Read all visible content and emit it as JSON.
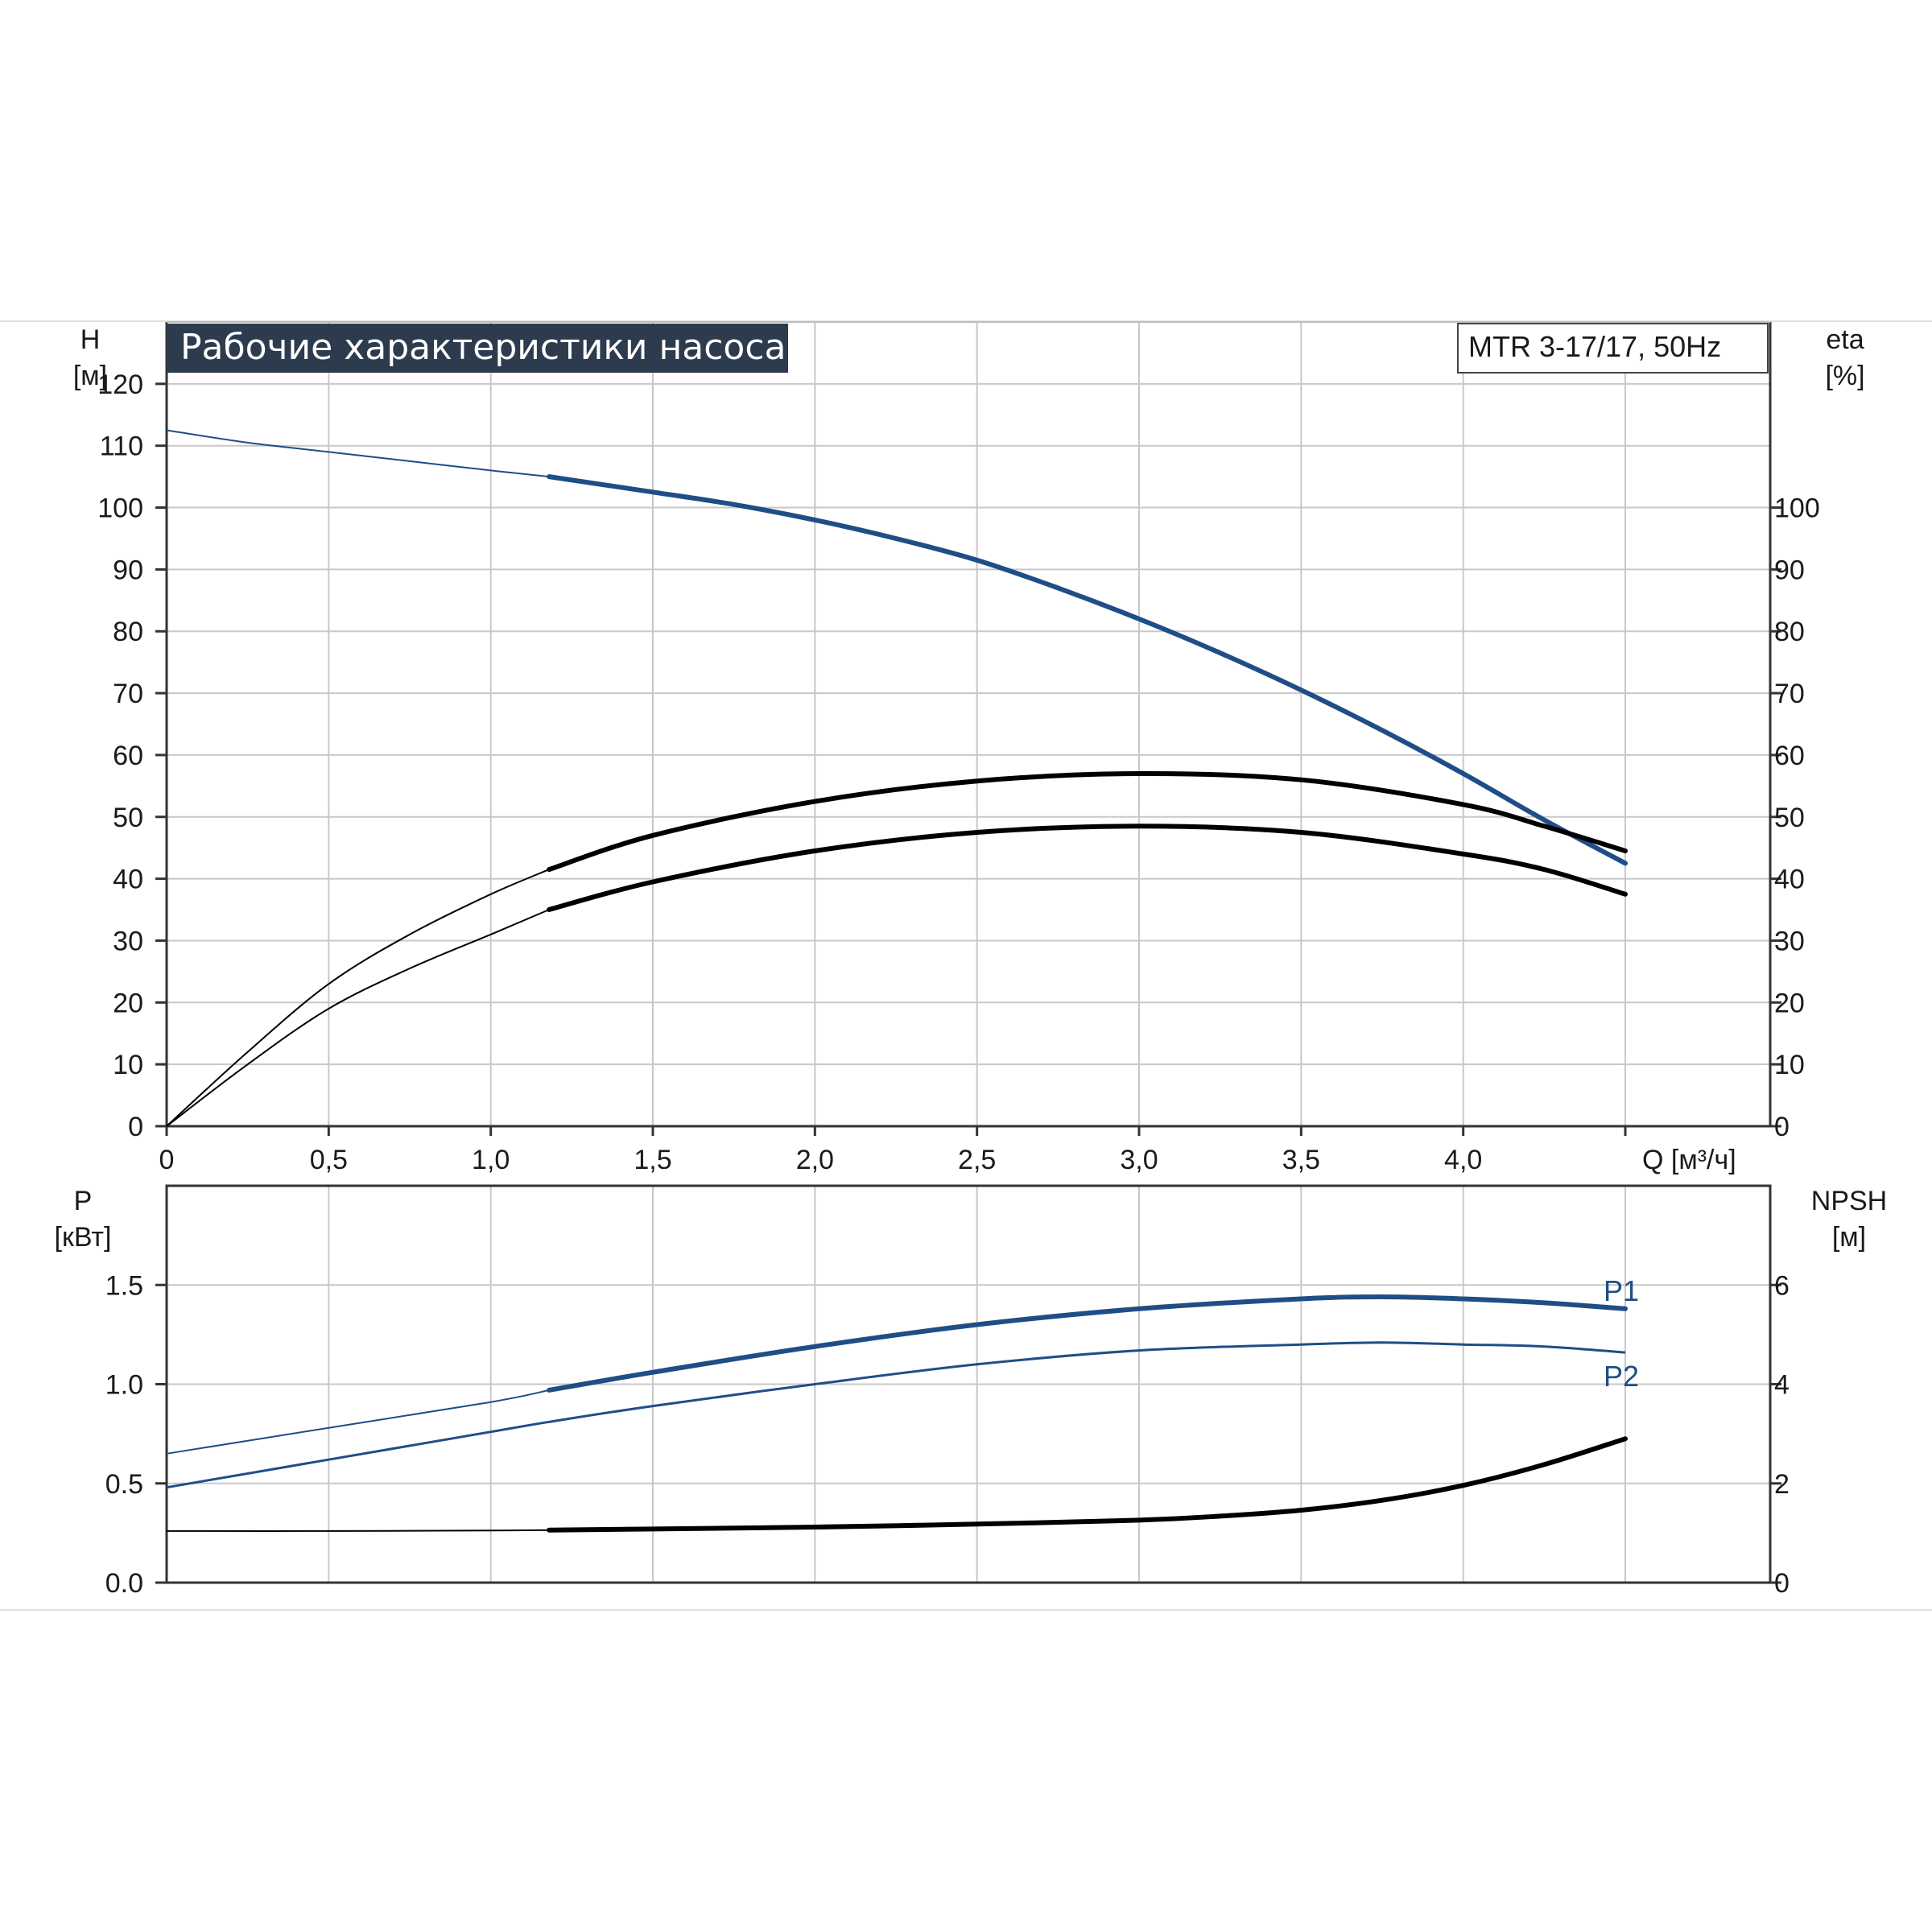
{
  "header": {
    "title": "Рабочие характеристики насоса",
    "model": "MTR 3-17/17, 50Hz"
  },
  "colors": {
    "blue": "#1f4e87",
    "black": "#000000",
    "grid": "#c8c8c8",
    "title_bg": "#2d3b4e"
  },
  "chart_data": [
    {
      "type": "line",
      "title": "Рабочие характеристики насоса",
      "left_axis_title": "H",
      "left_axis_unit": "[м]",
      "right_axis_title": "eta",
      "right_axis_unit": "[%]",
      "xlabel": "Q [м³/ч]",
      "x_ticks": [
        "0",
        "0,5",
        "1,0",
        "1,5",
        "2,0",
        "2,5",
        "3,0",
        "3,5",
        "4,0"
      ],
      "x_tick_values": [
        0,
        0.5,
        1.0,
        1.5,
        2.0,
        2.5,
        3.0,
        3.5,
        4.0
      ],
      "xlim": [
        0,
        4.5
      ],
      "y_ticks_left": [
        "0",
        "10",
        "20",
        "30",
        "40",
        "50",
        "60",
        "70",
        "80",
        "90",
        "100",
        "110",
        "120"
      ],
      "y_tick_values_left": [
        0,
        10,
        20,
        30,
        40,
        50,
        60,
        70,
        80,
        90,
        100,
        110,
        120
      ],
      "y_ticks_right": [
        "0",
        "10",
        "20",
        "30",
        "40",
        "50",
        "60",
        "70",
        "80",
        "90",
        "100"
      ],
      "y_tick_values_right": [
        0,
        10,
        20,
        30,
        40,
        50,
        60,
        70,
        80,
        90,
        100
      ],
      "ylim": [
        0,
        130
      ],
      "grid": true,
      "series": [
        {
          "color": "#1f4e87",
          "emphasis_from": 1.18,
          "x": [
            0,
            0.25,
            0.5,
            0.75,
            1.0,
            1.18,
            1.5,
            1.75,
            2.0,
            2.25,
            2.5,
            2.75,
            3.0,
            3.25,
            3.5,
            3.75,
            4.0,
            4.25,
            4.5
          ],
          "y": [
            112.5,
            110.5,
            109,
            107.5,
            106,
            105,
            102.5,
            100.5,
            98,
            95,
            91.5,
            87,
            82,
            76.5,
            70.5,
            64,
            57,
            49.5,
            42.5
          ]
        },
        {
          "color": "#000000",
          "emphasis_from": 1.18,
          "x": [
            0,
            0.25,
            0.5,
            0.75,
            1.0,
            1.18,
            1.5,
            2.0,
            2.5,
            3.0,
            3.5,
            4.0,
            4.25,
            4.5
          ],
          "y": [
            0,
            12,
            23,
            31,
            37.5,
            41.5,
            47,
            52.5,
            55.8,
            57,
            56,
            52,
            48.5,
            44.5
          ]
        },
        {
          "color": "#000000",
          "emphasis_from": 1.18,
          "x": [
            0,
            0.25,
            0.5,
            0.75,
            1.0,
            1.18,
            1.5,
            2.0,
            2.5,
            3.0,
            3.5,
            4.0,
            4.25,
            4.5
          ],
          "y": [
            0,
            10,
            19,
            25.5,
            31,
            35,
            39.5,
            44.5,
            47.5,
            48.5,
            47.5,
            44,
            41.5,
            37.5
          ]
        }
      ]
    },
    {
      "type": "line",
      "left_axis_title": "P",
      "left_axis_unit": "[кВт]",
      "right_axis_title": "NPSH",
      "right_axis_unit": "[м]",
      "y_ticks_left": [
        "0.0",
        "0.5",
        "1.0",
        "1.5"
      ],
      "y_tick_values_left": [
        0,
        0.5,
        1.0,
        1.5
      ],
      "y_ticks_right": [
        "0",
        "2",
        "4",
        "6"
      ],
      "y_tick_values_right": [
        0,
        2,
        4,
        6
      ],
      "ylim": [
        0,
        2.0
      ],
      "xlim": [
        0,
        4.5
      ],
      "grid": true,
      "series": [
        {
          "name": "P1",
          "color": "#1f4e87",
          "emphasis_from": 1.18,
          "x": [
            0,
            0.5,
            1.0,
            1.18,
            1.5,
            2.0,
            2.5,
            3.0,
            3.5,
            3.75,
            4.0,
            4.25,
            4.5
          ],
          "y": [
            0.65,
            0.78,
            0.91,
            0.97,
            1.06,
            1.19,
            1.3,
            1.38,
            1.43,
            1.44,
            1.43,
            1.41,
            1.38
          ]
        },
        {
          "name": "P2",
          "color": "#1f4e87",
          "emphasis_from": 99,
          "x": [
            0,
            0.5,
            1.0,
            1.18,
            1.5,
            2.0,
            2.5,
            3.0,
            3.5,
            3.75,
            4.0,
            4.25,
            4.5
          ],
          "y": [
            0.48,
            0.62,
            0.76,
            0.81,
            0.89,
            1.0,
            1.1,
            1.17,
            1.2,
            1.21,
            1.2,
            1.19,
            1.16
          ]
        },
        {
          "name": "NPSH",
          "axis": "right",
          "color": "#000000",
          "emphasis_from": 1.18,
          "x": [
            0,
            0.5,
            1.0,
            1.18,
            1.5,
            2.0,
            2.5,
            3.0,
            3.25,
            3.5,
            3.75,
            4.0,
            4.25,
            4.5
          ],
          "y": [
            1.04,
            1.04,
            1.05,
            1.06,
            1.08,
            1.12,
            1.18,
            1.26,
            1.34,
            1.46,
            1.66,
            1.96,
            2.38,
            2.9
          ]
        }
      ]
    }
  ]
}
